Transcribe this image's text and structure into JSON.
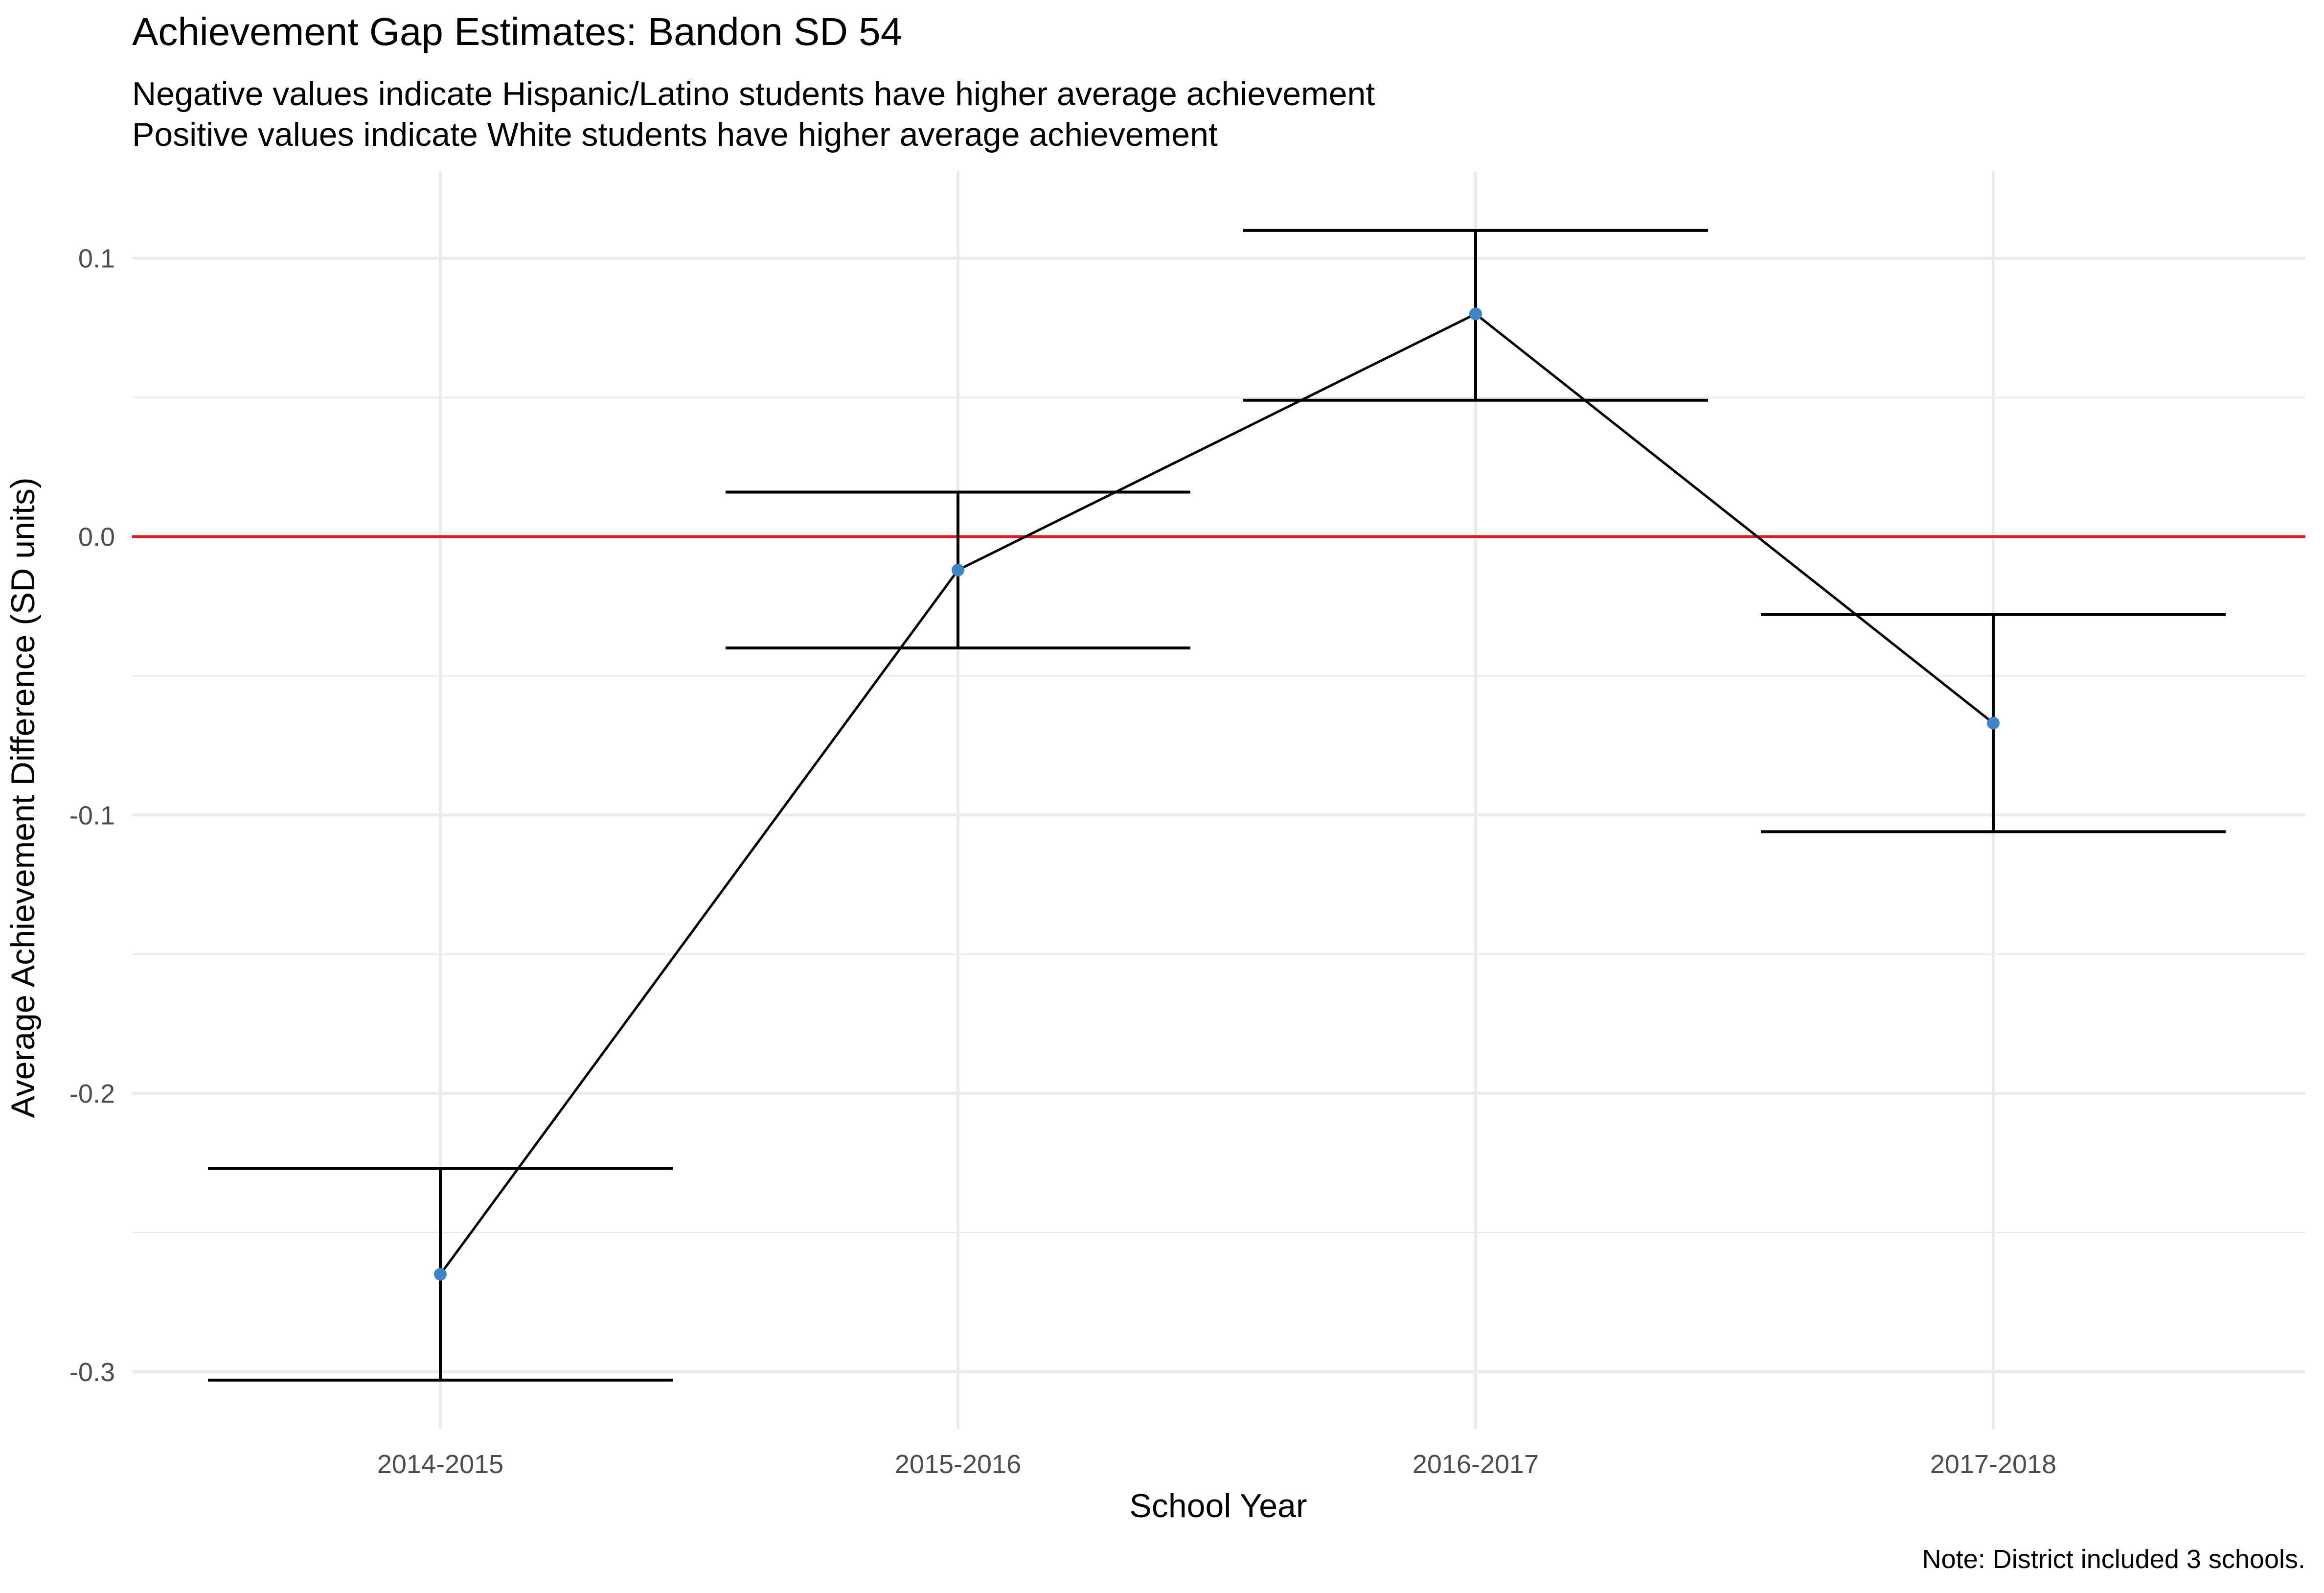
{
  "chart_data": {
    "type": "line",
    "title": "Achievement Gap Estimates: Bandon SD 54",
    "subtitle": [
      "Negative values indicate Hispanic/Latino students have higher average achievement",
      "Positive values indicate White students have higher average achievement"
    ],
    "xlabel": "School Year",
    "ylabel": "Average Achievement Difference (SD units)",
    "caption": "Note: District included 3 schools.",
    "categories": [
      "2014-2015",
      "2015-2016",
      "2016-2017",
      "2017-2018"
    ],
    "series": [
      {
        "values": [
          -0.265,
          -0.012,
          0.08,
          -0.067
        ],
        "lower": [
          -0.303,
          -0.04,
          0.049,
          -0.106
        ],
        "upper": [
          -0.227,
          0.016,
          0.11,
          -0.028
        ]
      }
    ],
    "ylim": [
      -0.3,
      0.1
    ],
    "yticks": [
      -0.3,
      -0.2,
      -0.1,
      0.0,
      0.1
    ],
    "ytick_labels": [
      "-0.3",
      "-0.2",
      "-0.1",
      "0.0",
      "0.1"
    ],
    "reference_line": {
      "y": 0.0
    },
    "grid": true,
    "legend": "none",
    "colors": {
      "point": "#3d85c6",
      "line": "#000000",
      "errorbar": "#000000",
      "reference_line": "#e41a1c",
      "grid": "#ebebeb"
    }
  }
}
